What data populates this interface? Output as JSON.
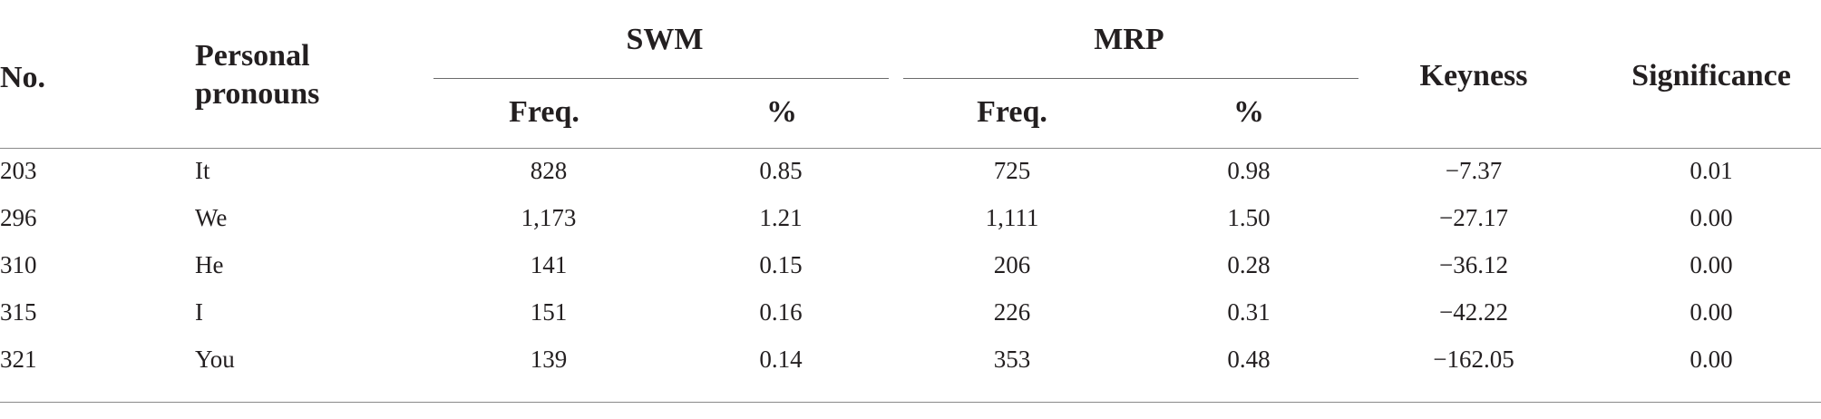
{
  "table": {
    "headers": {
      "no": "No.",
      "pronouns_line1": "Personal",
      "pronouns_line2": "pronouns",
      "swm": "SWM",
      "mrp": "MRP",
      "freq": "Freq.",
      "percent": "%",
      "keyness": "Keyness",
      "significance": "Significance"
    },
    "rows": [
      {
        "no": "203",
        "pronoun": "It",
        "swm_freq": "828",
        "swm_pct": "0.85",
        "mrp_freq": "725",
        "mrp_pct": "0.98",
        "keyness": "−7.37",
        "significance": "0.01"
      },
      {
        "no": "296",
        "pronoun": "We",
        "swm_freq": "1,173",
        "swm_pct": "1.21",
        "mrp_freq": "1,111",
        "mrp_pct": "1.50",
        "keyness": "−27.17",
        "significance": "0.00"
      },
      {
        "no": "310",
        "pronoun": "He",
        "swm_freq": "141",
        "swm_pct": "0.15",
        "mrp_freq": "206",
        "mrp_pct": "0.28",
        "keyness": "−36.12",
        "significance": "0.00"
      },
      {
        "no": "315",
        "pronoun": "I",
        "swm_freq": "151",
        "swm_pct": "0.16",
        "mrp_freq": "226",
        "mrp_pct": "0.31",
        "keyness": "−42.22",
        "significance": "0.00"
      },
      {
        "no": "321",
        "pronoun": "You",
        "swm_freq": "139",
        "swm_pct": "0.14",
        "mrp_freq": "353",
        "mrp_pct": "0.48",
        "keyness": "−162.05",
        "significance": "0.00"
      }
    ]
  }
}
